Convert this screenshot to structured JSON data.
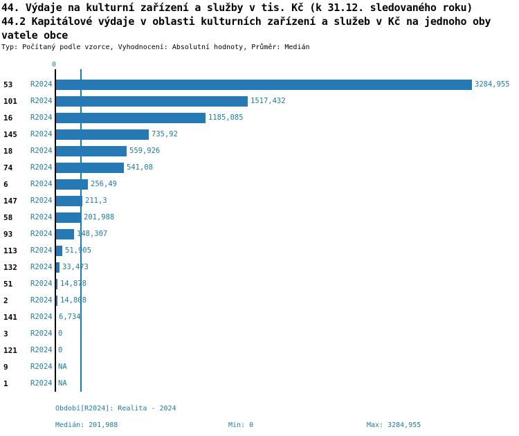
{
  "title": {
    "line1": "44. Výdaje na kulturní zařízení a služby v tis. Kč (k 31.12. sledovaného roku)",
    "line2": "44.2 Kapitálové výdaje v oblasti kulturních zařízení a služeb v Kč na jednoho oby",
    "line3": "vatele obce",
    "subtitle": "Typ: Počítaný podle vzorce, Vyhodnocení: Absolutní hodnoty, Průměr: Medián"
  },
  "chart_data": {
    "type": "bar",
    "orientation": "horizontal",
    "axis_zero_label": "0",
    "series_label": "R2024",
    "categories": [
      "53",
      "101",
      "16",
      "145",
      "18",
      "74",
      "6",
      "147",
      "58",
      "93",
      "113",
      "132",
      "51",
      "2",
      "141",
      "3",
      "121",
      "9",
      "1"
    ],
    "values": [
      3284.955,
      1517.432,
      1185.085,
      735.92,
      559.926,
      541.08,
      256.49,
      211.3,
      201.988,
      148.307,
      51.905,
      33.473,
      14.878,
      14.808,
      6.734,
      0,
      0,
      null,
      null
    ],
    "value_labels": [
      "3284,955",
      "1517,432",
      "1185,085",
      "735,92",
      "559,926",
      "541,08",
      "256,49",
      "211,3",
      "201,988",
      "148,307",
      "51,905",
      "33,473",
      "14,878",
      "14,808",
      "6,734",
      "0",
      "0",
      "NA",
      "NA"
    ],
    "median": 201.988,
    "min": 0,
    "max": 3284.955,
    "xlim": [
      0,
      3284.955
    ],
    "grid": false,
    "legend_position": "none",
    "bar_color": "#2579b5",
    "label_color": "#1b7ba5"
  },
  "footer": {
    "period": "Období[R2024]: Realita - 2024",
    "median": "Medián: 201,988",
    "min": "Min: 0",
    "max": "Max: 3284,955"
  }
}
